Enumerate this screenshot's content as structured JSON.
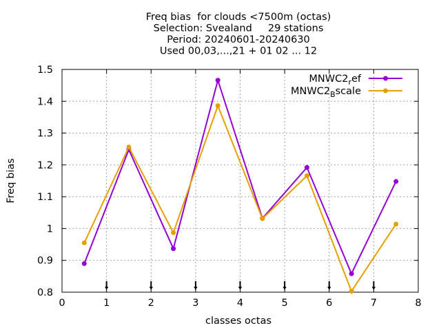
{
  "chart_data": {
    "type": "line",
    "title_lines": [
      "Freq bias  for clouds <7500m (octas)",
      "Selection: Svealand     29 stations",
      "Period: 20240601-20240630",
      "Used 00,03,...,21 + 01 02 ... 12"
    ],
    "xlabel": "classes octas",
    "ylabel": "Freq bias",
    "xlim": [
      0,
      8
    ],
    "ylim": [
      0.8,
      1.5
    ],
    "xticks": [
      0,
      1,
      2,
      3,
      4,
      5,
      6,
      7,
      8
    ],
    "yticks": [
      0.8,
      0.9,
      1.0,
      1.1,
      1.2,
      1.3,
      1.4,
      1.5
    ],
    "ytick_labels": [
      "0.8",
      "0.9",
      "1",
      "1.1",
      "1.2",
      "1.3",
      "1.4",
      "1.5"
    ],
    "grid": true,
    "legend_position": "top-right",
    "bottom_markers_x": [
      1,
      2,
      3,
      4,
      5,
      6,
      7
    ],
    "x": [
      0.5,
      1.5,
      2.5,
      3.5,
      4.5,
      5.5,
      6.5,
      7.5
    ],
    "series": [
      {
        "name": "MNWC2_ref",
        "legend_main": "MNWC2",
        "legend_sub": "r",
        "legend_rest": "ef",
        "color": "#9400d3",
        "values": [
          0.89,
          1.248,
          0.937,
          1.466,
          1.032,
          1.192,
          0.858,
          1.148
        ]
      },
      {
        "name": "MNWC2_Bscale",
        "legend_main": "MNWC2",
        "legend_sub": "B",
        "legend_rest": "scale",
        "color": "#e69f00",
        "values": [
          0.955,
          1.256,
          0.987,
          1.386,
          1.031,
          1.166,
          0.803,
          1.014
        ]
      }
    ]
  }
}
